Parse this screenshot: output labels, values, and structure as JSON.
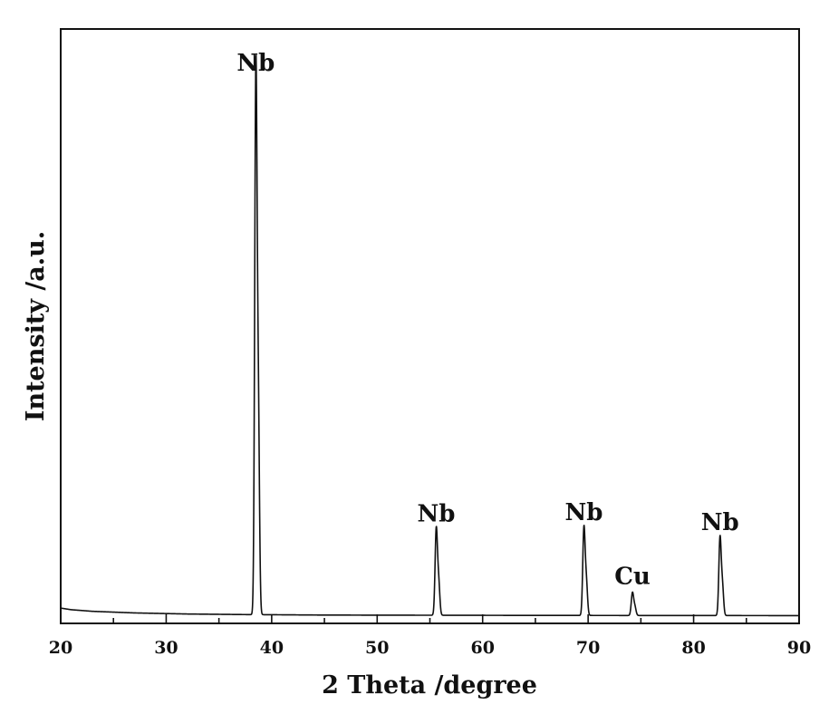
{
  "chart_data": {
    "type": "line",
    "xlabel": "2 Theta /degree",
    "ylabel": "Intensity /a.u.",
    "xlim": [
      20,
      90
    ],
    "ylim": [
      0,
      100
    ],
    "x_ticks": [
      "20",
      "30",
      "40",
      "50",
      "60",
      "70",
      "80",
      "90"
    ],
    "y_ticks_labeled": false,
    "grid": false,
    "series": [
      {
        "baseline": [
          [
            20,
            1.5
          ],
          [
            21,
            1.2
          ],
          [
            23,
            0.9
          ],
          [
            27,
            0.6
          ],
          [
            32,
            0.4
          ],
          [
            37,
            0.3
          ],
          [
            45,
            0.2
          ],
          [
            60,
            0.15
          ],
          [
            75,
            0.12
          ],
          [
            90,
            0.1
          ]
        ],
        "peaks": [
          {
            "x": 38.5,
            "y": 100,
            "label": "Nb"
          },
          {
            "x": 55.6,
            "y": 16.0,
            "label": "Nb"
          },
          {
            "x": 69.6,
            "y": 16.2,
            "label": "Nb"
          },
          {
            "x": 74.2,
            "y": 4.3,
            "label": "Cu"
          },
          {
            "x": 82.5,
            "y": 14.4,
            "label": "Nb"
          }
        ]
      }
    ]
  }
}
